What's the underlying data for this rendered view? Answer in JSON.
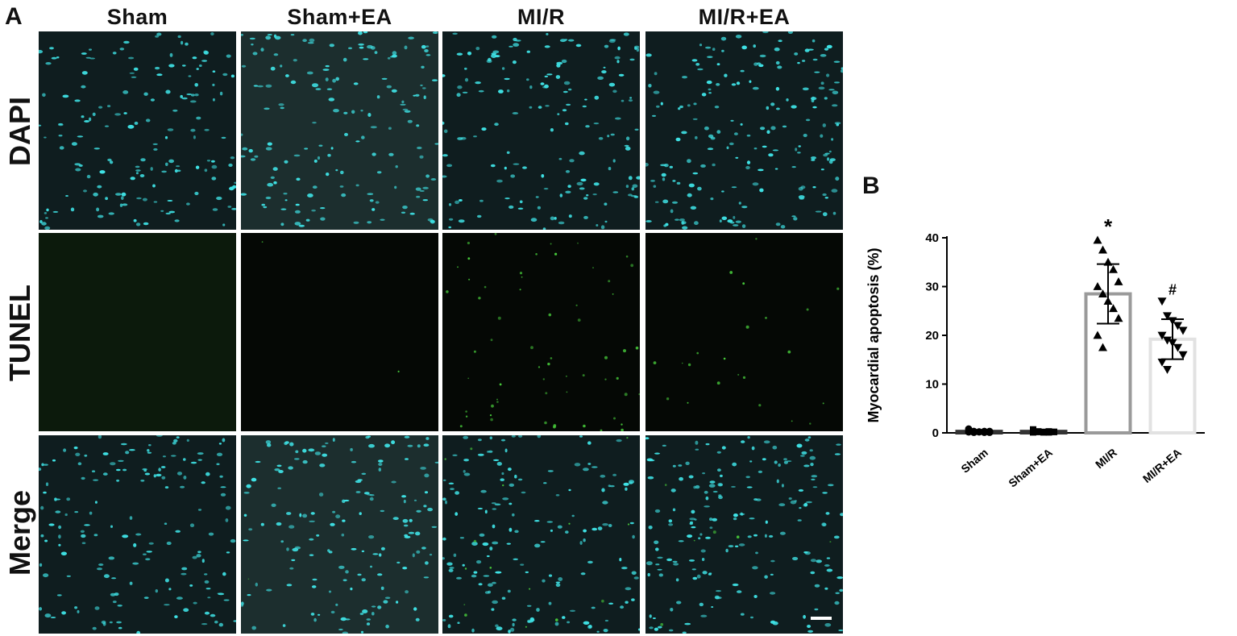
{
  "panel_a": {
    "letter": "A",
    "columns": [
      "Sham",
      "Sham+EA",
      "MI/R",
      "MI/R+EA"
    ],
    "rows": [
      "DAPI",
      "TUNEL",
      "Merge"
    ],
    "colors": {
      "dapi": "#3fe3e6",
      "tunel": "#46c83a",
      "scale_bar": "#ffffff"
    }
  },
  "panel_b": {
    "letter": "B"
  },
  "chart_data": {
    "type": "bar",
    "categories": [
      "Sham",
      "Sham+EA",
      "MI/R",
      "MI/R+EA"
    ],
    "values": [
      0.3,
      0.3,
      28.5,
      19.2
    ],
    "error": [
      0.2,
      0.2,
      6.1,
      4.1
    ],
    "points": [
      [
        0.8,
        0.1,
        0.2,
        0.3,
        0.1,
        0.2,
        0.3,
        0.2,
        0.1,
        0.3,
        0.2,
        0.2
      ],
      [
        0.7,
        0.2,
        0.1,
        0.3,
        0.2,
        0.1,
        0.3,
        0.2,
        0.1,
        0.2,
        0.3,
        0.2
      ],
      [
        39.5,
        37.5,
        35,
        33.5,
        31,
        30,
        28.5,
        27,
        25.5,
        23.5,
        20,
        17.5
      ],
      [
        27,
        24,
        23,
        22,
        21,
        20,
        19,
        18.5,
        17.5,
        16,
        14.5,
        13
      ]
    ],
    "markers": [
      "circle",
      "square",
      "triangle-up",
      "triangle-down"
    ],
    "significance": [
      "",
      "",
      "*",
      "#"
    ],
    "ylabel": "Myocardial apoptosis (%)",
    "ylim": [
      0,
      40
    ],
    "yticks": [
      0,
      10,
      20,
      30,
      40
    ],
    "bar_colors": [
      "#333333",
      "#333333",
      "#9a9a9a",
      "#e2e2e2"
    ],
    "grid": false,
    "legend": "none"
  }
}
